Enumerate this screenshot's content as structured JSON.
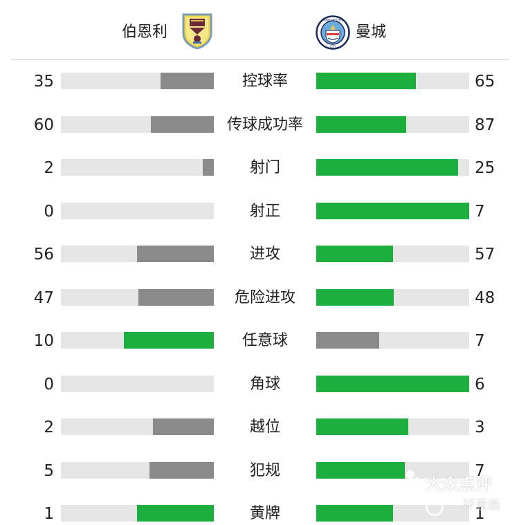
{
  "header": {
    "home": {
      "name": "伯恩利",
      "crest_icon": "burnley-crest-icon"
    },
    "away": {
      "name": "曼城",
      "crest_icon": "man-city-crest-icon",
      "crest_text_top": "MANCHESTER",
      "crest_text_bottom": "CITY"
    }
  },
  "colors": {
    "green": "#1daf3e",
    "gray": "#8a8a8a",
    "track": "#e6e6e6",
    "divider": "#e4e4e4"
  },
  "stats": [
    {
      "label": "控球率",
      "home": "35",
      "away": "65",
      "home_fraction": 0.35,
      "away_fraction": 0.65,
      "home_color": "gray",
      "away_color": "green"
    },
    {
      "label": "传球成功率",
      "home": "60",
      "away": "87",
      "home_fraction": 0.41,
      "away_fraction": 0.59,
      "home_color": "gray",
      "away_color": "green"
    },
    {
      "label": "射门",
      "home": "2",
      "away": "25",
      "home_fraction": 0.074,
      "away_fraction": 0.926,
      "home_color": "gray",
      "away_color": "green"
    },
    {
      "label": "射正",
      "home": "0",
      "away": "7",
      "home_fraction": 0.0,
      "away_fraction": 1.0,
      "home_color": "gray",
      "away_color": "green"
    },
    {
      "label": "进攻",
      "home": "56",
      "away": "57",
      "home_fraction": 0.5,
      "away_fraction": 0.5,
      "home_color": "gray",
      "away_color": "green"
    },
    {
      "label": "危险进攻",
      "home": "47",
      "away": "48",
      "home_fraction": 0.495,
      "away_fraction": 0.505,
      "home_color": "gray",
      "away_color": "green"
    },
    {
      "label": "任意球",
      "home": "10",
      "away": "7",
      "home_fraction": 0.59,
      "away_fraction": 0.41,
      "home_color": "green",
      "away_color": "gray"
    },
    {
      "label": "角球",
      "home": "0",
      "away": "6",
      "home_fraction": 0.0,
      "away_fraction": 1.0,
      "home_color": "gray",
      "away_color": "green"
    },
    {
      "label": "越位",
      "home": "2",
      "away": "3",
      "home_fraction": 0.4,
      "away_fraction": 0.6,
      "home_color": "gray",
      "away_color": "green"
    },
    {
      "label": "犯规",
      "home": "5",
      "away": "7",
      "home_fraction": 0.42,
      "away_fraction": 0.58,
      "home_color": "gray",
      "away_color": "green"
    },
    {
      "label": "黄牌",
      "home": "1",
      "away": "1",
      "home_fraction": 0.5,
      "away_fraction": 0.5,
      "home_color": "green",
      "away_color": "green"
    }
  ],
  "watermark": {
    "brand": "大众点评",
    "sub": "环景画",
    "icon": "dianping-logo-icon"
  }
}
